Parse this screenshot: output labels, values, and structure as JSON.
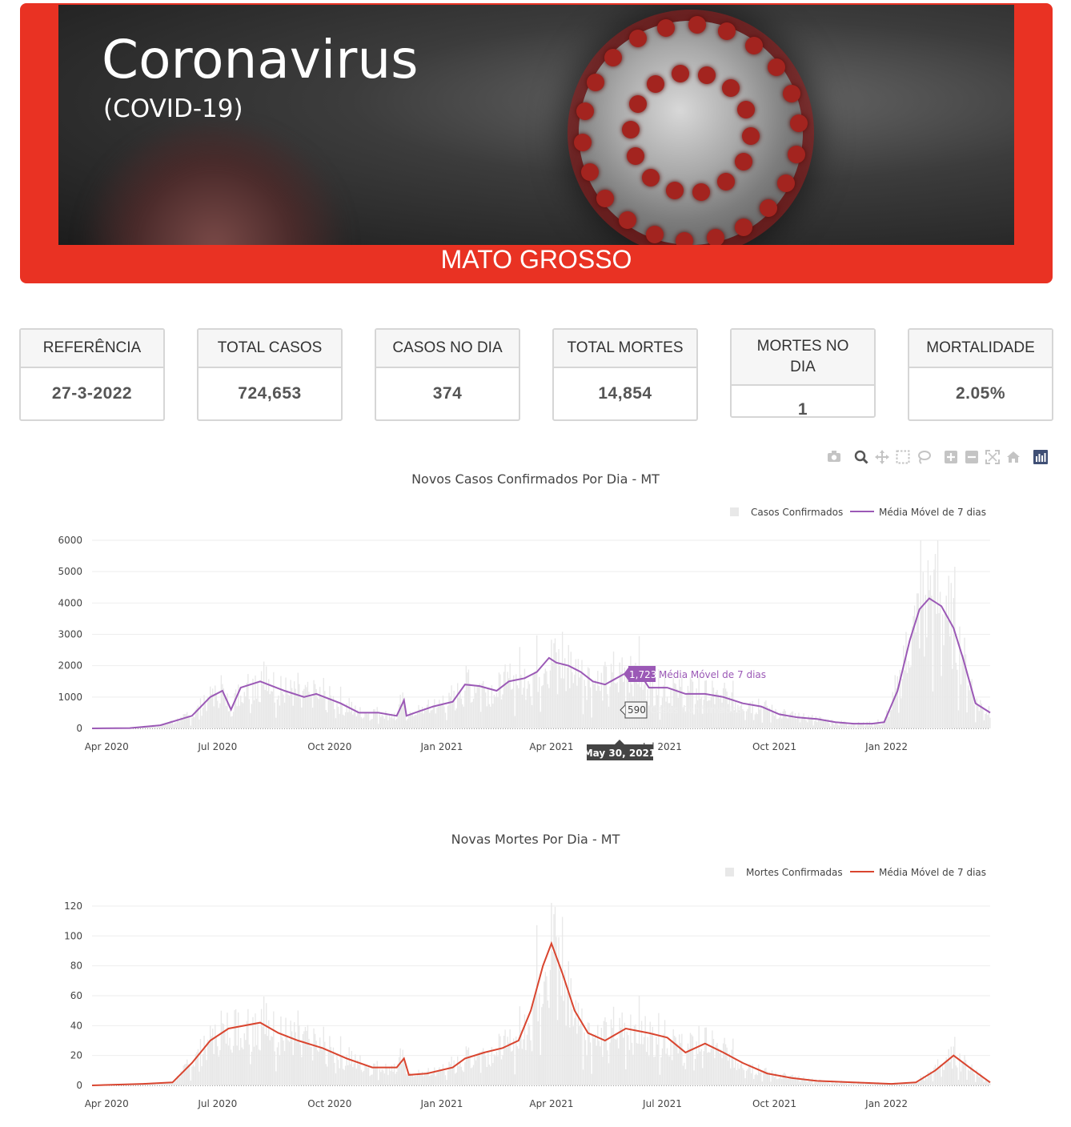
{
  "banner": {
    "title": "Coronavirus",
    "subtitle": "(COVID-19)",
    "state": "MATO GROSSO",
    "background_color": "#e93223"
  },
  "cards": [
    {
      "label": "REFERÊNCIA",
      "value": "27-3-2022"
    },
    {
      "label": "TOTAL CASOS",
      "value": "724,653"
    },
    {
      "label": "CASOS NO DIA",
      "value": "374"
    },
    {
      "label": "TOTAL MORTES",
      "value": "14,854"
    },
    {
      "label": "MORTES NO DIA",
      "value": "1"
    },
    {
      "label": "MORTALIDADE",
      "value": "2.05%"
    }
  ],
  "toolbar": {
    "icons": [
      "camera-icon",
      "zoom-icon",
      "pan-icon",
      "box-select-icon",
      "lasso-icon",
      "zoom-in-icon",
      "zoom-out-icon",
      "autoscale-icon",
      "reset-axes-icon",
      "plotly-logo-icon"
    ]
  },
  "chart_data": [
    {
      "type": "bar",
      "title": "Novos Casos Confirmados Por Dia - MT",
      "xlabel": "",
      "ylabel": "",
      "ylim": [
        0,
        6000
      ],
      "yticks": [
        0,
        1000,
        2000,
        3000,
        4000,
        5000,
        6000
      ],
      "xticks": [
        "Apr 2020",
        "Jul 2020",
        "Oct 2020",
        "Jan 2021",
        "Apr 2021",
        "Jul 2021",
        "Oct 2021",
        "Jan 2022"
      ],
      "x_range": [
        "2020-03-20",
        "2022-03-27"
      ],
      "legend": "top-right",
      "series": [
        {
          "name": "Casos Confirmados",
          "type": "bar",
          "color": "#e8e8e8"
        },
        {
          "name": "Média Móvel de 7 dias",
          "type": "line",
          "color": "#9b59b6",
          "x": [
            "2020-03-20",
            "2020-04-20",
            "2020-05-15",
            "2020-06-10",
            "2020-06-25",
            "2020-07-05",
            "2020-07-12",
            "2020-07-20",
            "2020-08-05",
            "2020-08-25",
            "2020-09-10",
            "2020-09-20",
            "2020-10-10",
            "2020-10-25",
            "2020-11-10",
            "2020-11-25",
            "2020-12-01",
            "2020-12-03",
            "2020-12-10",
            "2020-12-25",
            "2021-01-10",
            "2021-01-20",
            "2021-02-01",
            "2021-02-15",
            "2021-02-25",
            "2021-03-10",
            "2021-03-20",
            "2021-03-30",
            "2021-04-05",
            "2021-04-15",
            "2021-04-25",
            "2021-05-05",
            "2021-05-15",
            "2021-05-30",
            "2021-06-10",
            "2021-06-20",
            "2021-07-05",
            "2021-07-20",
            "2021-08-05",
            "2021-08-20",
            "2021-09-05",
            "2021-09-20",
            "2021-10-05",
            "2021-10-20",
            "2021-11-05",
            "2021-11-20",
            "2021-12-05",
            "2021-12-20",
            "2021-12-30",
            "2022-01-10",
            "2022-01-20",
            "2022-01-28",
            "2022-02-05",
            "2022-02-15",
            "2022-02-25",
            "2022-03-05",
            "2022-03-15",
            "2022-03-27"
          ],
          "values": [
            0,
            10,
            100,
            400,
            1000,
            1200,
            600,
            1300,
            1500,
            1200,
            1000,
            1100,
            800,
            500,
            500,
            400,
            900,
            400,
            500,
            700,
            850,
            1400,
            1350,
            1200,
            1500,
            1600,
            1800,
            2250,
            2100,
            2000,
            1800,
            1500,
            1400,
            1723,
            1900,
            1300,
            1300,
            1100,
            1100,
            1000,
            800,
            700,
            450,
            350,
            300,
            200,
            150,
            150,
            200,
            1200,
            2800,
            3800,
            4150,
            3900,
            3200,
            2200,
            800,
            500
          ]
        }
      ],
      "hover": {
        "date": "May 30, 2021",
        "line_value": "1,723",
        "line_name": "Média Móvel de 7 dias",
        "bar_value": "590",
        "bar_name": "Casos Confirmados"
      }
    },
    {
      "type": "bar",
      "title": "Novas Mortes Por Dia - MT",
      "xlabel": "",
      "ylabel": "",
      "ylim": [
        0,
        128
      ],
      "yticks": [
        0,
        20,
        40,
        60,
        80,
        100,
        120
      ],
      "xticks": [
        "Apr 2020",
        "Jul 2020",
        "Oct 2020",
        "Jan 2021",
        "Apr 2021",
        "Jul 2021",
        "Oct 2021",
        "Jan 2022"
      ],
      "x_range": [
        "2020-03-20",
        "2022-03-27"
      ],
      "legend": "top-right",
      "series": [
        {
          "name": "Mortes Confirmadas",
          "type": "bar",
          "color": "#e8e8e8"
        },
        {
          "name": "Média Móvel de 7 dias",
          "type": "line",
          "color": "#d9452f",
          "x": [
            "2020-03-20",
            "2020-05-01",
            "2020-05-25",
            "2020-06-10",
            "2020-06-25",
            "2020-07-10",
            "2020-08-05",
            "2020-08-20",
            "2020-09-05",
            "2020-09-25",
            "2020-10-15",
            "2020-11-05",
            "2020-11-25",
            "2020-12-01",
            "2020-12-05",
            "2020-12-20",
            "2021-01-10",
            "2021-01-20",
            "2021-02-05",
            "2021-02-20",
            "2021-03-05",
            "2021-03-15",
            "2021-03-25",
            "2021-04-01",
            "2021-04-10",
            "2021-04-20",
            "2021-05-01",
            "2021-05-15",
            "2021-06-01",
            "2021-06-20",
            "2021-07-05",
            "2021-07-20",
            "2021-08-05",
            "2021-08-20",
            "2021-09-05",
            "2021-09-25",
            "2021-10-15",
            "2021-11-05",
            "2021-12-05",
            "2022-01-05",
            "2022-01-25",
            "2022-02-10",
            "2022-02-25",
            "2022-03-10",
            "2022-03-27"
          ],
          "values": [
            0,
            1,
            2,
            15,
            30,
            38,
            42,
            35,
            30,
            25,
            18,
            12,
            12,
            18,
            7,
            8,
            12,
            18,
            22,
            25,
            30,
            50,
            80,
            95,
            75,
            50,
            35,
            30,
            38,
            35,
            32,
            22,
            28,
            22,
            15,
            8,
            5,
            3,
            2,
            1,
            2,
            10,
            20,
            12,
            2
          ]
        }
      ]
    }
  ]
}
